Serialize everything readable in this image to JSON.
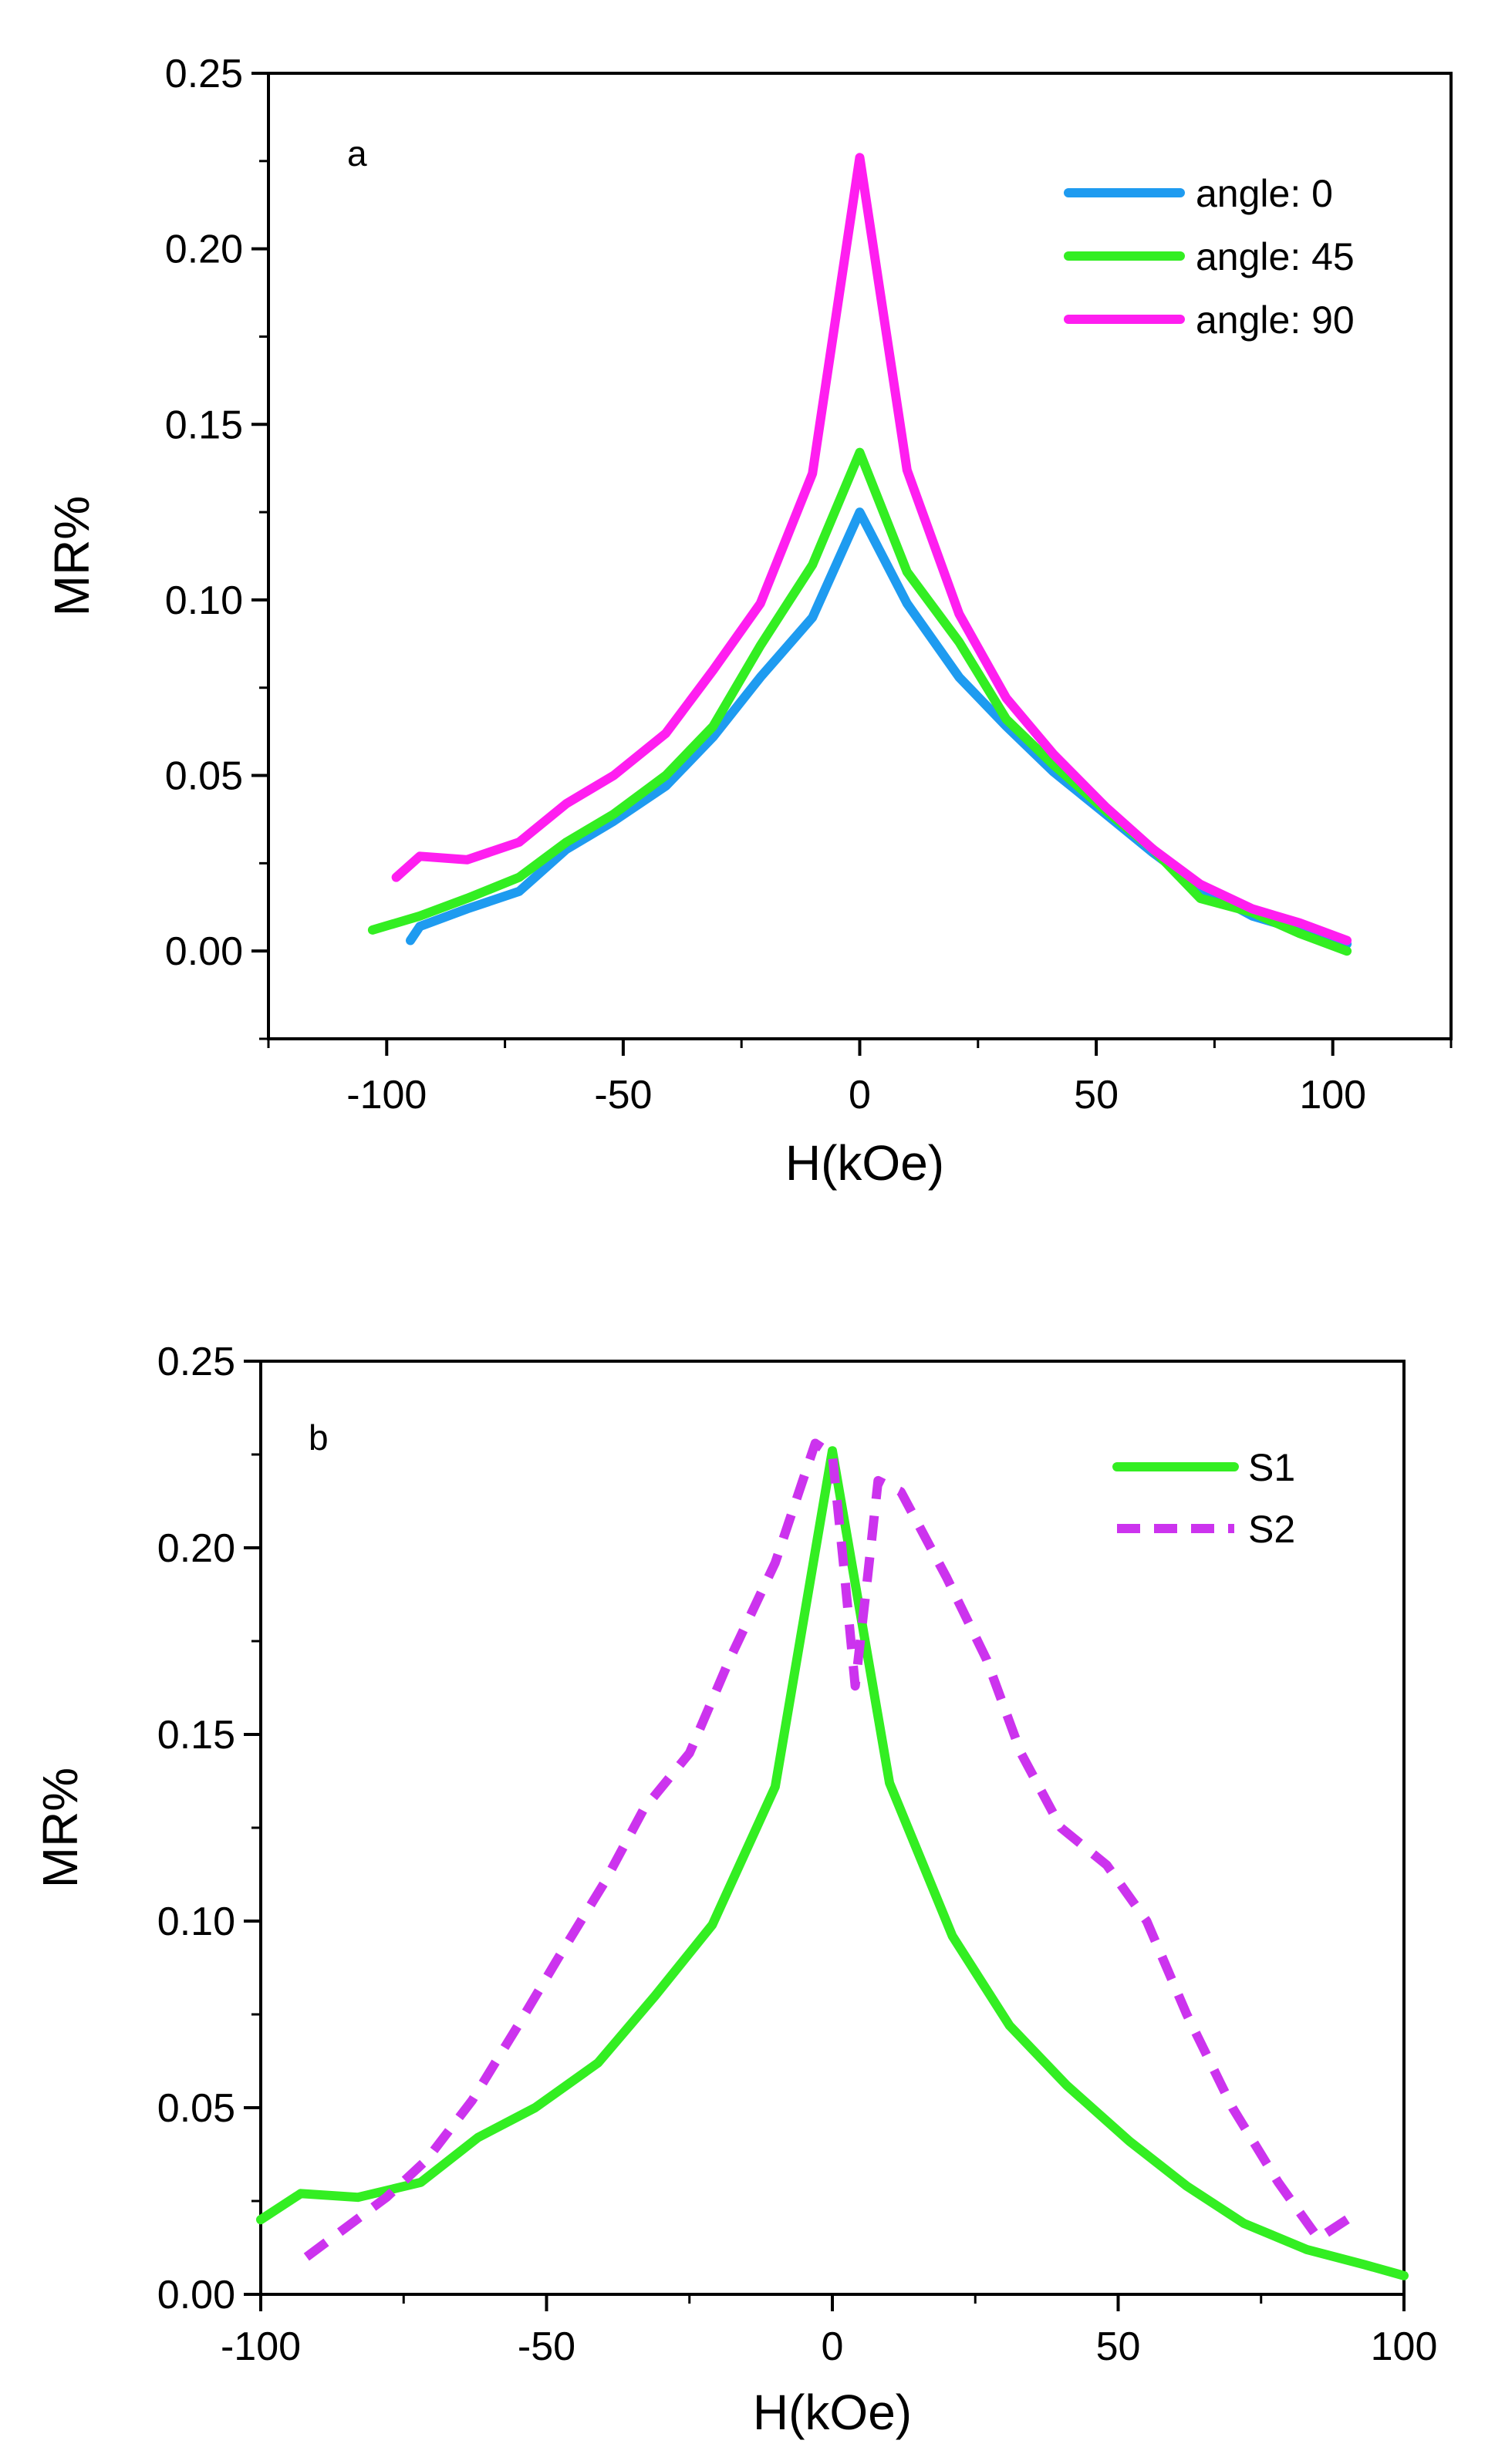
{
  "chart_data": [
    {
      "type": "line",
      "panel_label": "a",
      "title": "",
      "xlabel": "H(kOe)",
      "ylabel": "MR%",
      "xlim": [
        -125,
        125
      ],
      "ylim": [
        -0.025,
        0.25
      ],
      "xticks": [
        -100,
        -50,
        0,
        50,
        100
      ],
      "xtick_labels": [
        "-100",
        "-50",
        "0",
        "50",
        "100"
      ],
      "yticks": [
        0.0,
        0.05,
        0.1,
        0.15,
        0.2,
        0.25
      ],
      "ytick_labels": [
        "0.00",
        "0.05",
        "0.10",
        "0.15",
        "0.20",
        "0.25"
      ],
      "grid": false,
      "legend_position": "top-right",
      "series": [
        {
          "name": "angle: 0",
          "color": "#1E9BF0",
          "dash": "solid",
          "x": [
            -95,
            -93,
            -83,
            -72,
            -62,
            -52,
            -41,
            -31,
            -21,
            -10,
            0,
            10,
            21,
            31,
            41,
            52,
            62,
            72,
            83,
            93,
            103
          ],
          "y": [
            0.003,
            0.007,
            0.012,
            0.017,
            0.029,
            0.037,
            0.047,
            0.061,
            0.078,
            0.095,
            0.125,
            0.099,
            0.078,
            0.064,
            0.051,
            0.039,
            0.028,
            0.018,
            0.01,
            0.006,
            0.002
          ]
        },
        {
          "name": "angle: 45",
          "color": "#33EE22",
          "dash": "solid",
          "x": [
            -103,
            -93,
            -83,
            -72,
            -62,
            -52,
            -41,
            -31,
            -21,
            -10,
            0,
            10,
            21,
            31,
            41,
            52,
            62,
            72,
            83,
            93,
            103
          ],
          "y": [
            0.006,
            0.01,
            0.015,
            0.021,
            0.031,
            0.039,
            0.05,
            0.064,
            0.087,
            0.11,
            0.142,
            0.108,
            0.088,
            0.066,
            0.053,
            0.04,
            0.029,
            0.015,
            0.011,
            0.005,
            0.0
          ]
        },
        {
          "name": "angle: 90",
          "color": "#FF1EF0",
          "dash": "solid",
          "x": [
            -98,
            -93,
            -83,
            -72,
            -62,
            -52,
            -41,
            -31,
            -21,
            -10,
            0,
            10,
            21,
            31,
            41,
            52,
            62,
            72,
            83,
            93,
            103
          ],
          "y": [
            0.021,
            0.027,
            0.026,
            0.031,
            0.042,
            0.05,
            0.062,
            0.08,
            0.099,
            0.136,
            0.226,
            0.137,
            0.096,
            0.072,
            0.056,
            0.041,
            0.029,
            0.019,
            0.012,
            0.008,
            0.003
          ]
        }
      ]
    },
    {
      "type": "line",
      "panel_label": "b",
      "title": "",
      "xlabel": "H(kOe)",
      "ylabel": "MR%",
      "xlim": [
        -100,
        100
      ],
      "ylim": [
        0.0,
        0.25
      ],
      "xticks": [
        -100,
        -50,
        0,
        50,
        100
      ],
      "xtick_labels": [
        "-100",
        "-50",
        "0",
        "50",
        "100"
      ],
      "yticks": [
        0.0,
        0.05,
        0.1,
        0.15,
        0.2,
        0.25
      ],
      "ytick_labels": [
        "0.00",
        "0.05",
        "0.10",
        "0.15",
        "0.20",
        "0.25"
      ],
      "grid": false,
      "legend_position": "top-right",
      "series": [
        {
          "name": "S1",
          "color": "#33EE22",
          "dash": "solid",
          "x": [
            -100,
            -93,
            -83,
            -72,
            -62,
            -52,
            -41,
            -31,
            -21,
            -10,
            0,
            10,
            21,
            31,
            41,
            52,
            62,
            72,
            83,
            93,
            100
          ],
          "y": [
            0.02,
            0.027,
            0.026,
            0.03,
            0.042,
            0.05,
            0.062,
            0.08,
            0.099,
            0.136,
            0.226,
            0.137,
            0.096,
            0.072,
            0.056,
            0.041,
            0.029,
            0.019,
            0.012,
            0.008,
            0.005
          ]
        },
        {
          "name": "S2",
          "color": "#CC33EE",
          "dash": "dashed",
          "x": [
            -92,
            -85,
            -78,
            -71,
            -63,
            -55,
            -48,
            -40,
            -33,
            -25,
            -18,
            -10,
            -3,
            0,
            2,
            4,
            6,
            8,
            12,
            20,
            27,
            33,
            40,
            48,
            55,
            62,
            70,
            78,
            85,
            92
          ],
          "y": [
            0.01,
            0.018,
            0.026,
            0.036,
            0.052,
            0.072,
            0.09,
            0.11,
            0.13,
            0.145,
            0.17,
            0.196,
            0.228,
            0.225,
            0.195,
            0.163,
            0.19,
            0.218,
            0.215,
            0.192,
            0.17,
            0.145,
            0.125,
            0.115,
            0.1,
            0.075,
            0.05,
            0.03,
            0.015,
            0.022
          ]
        }
      ]
    }
  ]
}
